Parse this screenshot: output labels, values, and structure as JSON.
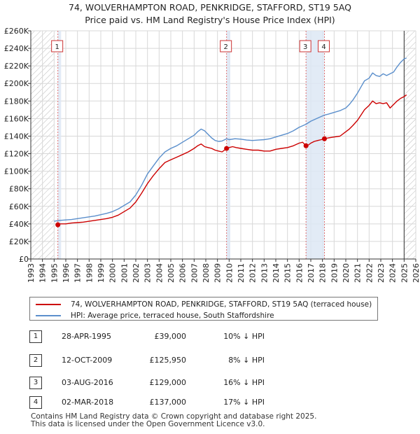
{
  "title": {
    "line1": "74, WOLVERHAMPTON ROAD, PENKRIDGE, STAFFORD, ST19 5AQ",
    "line2": "Price paid vs. HM Land Registry's House Price Index (HPI)"
  },
  "colors": {
    "property": "#cc0000",
    "hpi": "#5b8fcc",
    "shade": "#dde7f5",
    "marker_line": "#e07070"
  },
  "legend": {
    "property": "74, WOLVERHAMPTON ROAD, PENKRIDGE, STAFFORD, ST19 5AQ (terraced house)",
    "hpi": "HPI: Average price, terraced house, South Staffordshire"
  },
  "sales": [
    {
      "num": "1",
      "date": "28-APR-1995",
      "price": "£39,000",
      "hpi": "10% ↓ HPI"
    },
    {
      "num": "2",
      "date": "12-OCT-2009",
      "price": "£125,950",
      "hpi": "8% ↓ HPI"
    },
    {
      "num": "3",
      "date": "03-AUG-2016",
      "price": "£129,000",
      "hpi": "16% ↓ HPI"
    },
    {
      "num": "4",
      "date": "02-MAR-2018",
      "price": "£137,000",
      "hpi": "17% ↓ HPI"
    }
  ],
  "footer": {
    "line1": "Contains HM Land Registry data © Crown copyright and database right 2025.",
    "line2": "This data is licensed under the Open Government Licence v3.0."
  },
  "chart_data": {
    "type": "line",
    "title": "Price paid vs. HM Land Registry's House Price Index (HPI)",
    "xlabel": "",
    "ylabel": "",
    "xlim": [
      1993,
      2026
    ],
    "ylim": [
      0,
      260000
    ],
    "y_ticks": [
      0,
      20000,
      40000,
      60000,
      80000,
      100000,
      120000,
      140000,
      160000,
      180000,
      200000,
      220000,
      240000,
      260000
    ],
    "y_tick_labels": [
      "£0",
      "£20K",
      "£40K",
      "£60K",
      "£80K",
      "£100K",
      "£120K",
      "£140K",
      "£160K",
      "£180K",
      "£200K",
      "£220K",
      "£240K",
      "£260K"
    ],
    "x_ticks": [
      1993,
      1994,
      1995,
      1996,
      1997,
      1998,
      1999,
      2000,
      2001,
      2002,
      2003,
      2004,
      2005,
      2006,
      2007,
      2008,
      2009,
      2010,
      2011,
      2012,
      2013,
      2014,
      2015,
      2016,
      2017,
      2018,
      2019,
      2020,
      2021,
      2022,
      2023,
      2024,
      2025,
      2026
    ],
    "hatched_regions": [
      [
        1993,
        1995.0
      ],
      [
        2025.0,
        2026
      ]
    ],
    "shaded_regions": [
      [
        1995.32,
        1995.6
      ],
      [
        2009.78,
        2010.1
      ],
      [
        2016.59,
        2018.17
      ]
    ],
    "series": [
      {
        "name": "74, WOLVERHAMPTON ROAD, PENKRIDGE, STAFFORD, ST19 5AQ (terraced house)",
        "x": [
          1995.32,
          1995.5,
          1996,
          1996.5,
          1997,
          1997.5,
          1998,
          1998.5,
          1999,
          1999.5,
          2000,
          2000.5,
          2001,
          2001.5,
          2002,
          2002.5,
          2003,
          2003.5,
          2004,
          2004.5,
          2005,
          2005.5,
          2006,
          2006.5,
          2007,
          2007.3,
          2007.6,
          2007.9,
          2008.2,
          2008.5,
          2008.8,
          2009.1,
          2009.4,
          2009.78,
          2010,
          2010.3,
          2010.6,
          2011,
          2011.5,
          2012,
          2012.5,
          2013,
          2013.5,
          2014,
          2014.5,
          2015,
          2015.5,
          2016,
          2016.3,
          2016.59,
          2016.8,
          2017,
          2017.3,
          2017.6,
          2017.9,
          2018.17,
          2018.5,
          2019,
          2019.5,
          2020,
          2020.3,
          2020.6,
          2021,
          2021.3,
          2021.6,
          2022,
          2022.3,
          2022.6,
          2022.9,
          2023.2,
          2023.5,
          2023.8,
          2024.1,
          2024.4,
          2024.7,
          2025,
          2025.2
        ],
        "values": [
          39000,
          40000,
          40000,
          41000,
          41500,
          42000,
          43000,
          44000,
          45000,
          46000,
          47500,
          50000,
          54000,
          58000,
          65000,
          75000,
          86000,
          95000,
          103000,
          110000,
          113000,
          116000,
          119000,
          122000,
          126000,
          129000,
          131000,
          128000,
          127000,
          126000,
          124000,
          123000,
          122000,
          125950,
          127000,
          128000,
          127000,
          126000,
          125000,
          124000,
          124000,
          123000,
          123000,
          125000,
          126000,
          127000,
          129000,
          132000,
          133000,
          129000,
          130000,
          132000,
          134000,
          135000,
          136000,
          137000,
          138000,
          139000,
          140000,
          145000,
          148000,
          152000,
          158000,
          164000,
          170000,
          175000,
          180000,
          177000,
          178000,
          177000,
          178000,
          172000,
          176000,
          180000,
          183000,
          185000,
          187000
        ]
      },
      {
        "name": "HPI: Average price, terraced house, South Staffordshire",
        "x": [
          1995,
          1995.5,
          1996,
          1996.5,
          1997,
          1997.5,
          1998,
          1998.5,
          1999,
          1999.5,
          2000,
          2000.5,
          2001,
          2001.5,
          2002,
          2002.5,
          2003,
          2003.5,
          2004,
          2004.5,
          2005,
          2005.5,
          2006,
          2006.5,
          2007,
          2007.3,
          2007.6,
          2007.9,
          2008.2,
          2008.5,
          2008.8,
          2009.1,
          2009.4,
          2009.78,
          2010,
          2010.5,
          2011,
          2011.5,
          2012,
          2012.5,
          2013,
          2013.5,
          2014,
          2014.5,
          2015,
          2015.5,
          2016,
          2016.59,
          2017,
          2017.5,
          2018.17,
          2018.5,
          2019,
          2019.5,
          2020,
          2020.3,
          2020.6,
          2021,
          2021.3,
          2021.6,
          2022,
          2022.3,
          2022.6,
          2022.9,
          2023.2,
          2023.5,
          2023.8,
          2024.1,
          2024.4,
          2024.7,
          2025,
          2025.2
        ],
        "values": [
          43000,
          44000,
          44500,
          45000,
          46000,
          47000,
          48000,
          49000,
          50500,
          52000,
          54000,
          57000,
          61000,
          65000,
          73000,
          84000,
          97000,
          106000,
          115000,
          122000,
          126000,
          129000,
          133000,
          137000,
          141000,
          145000,
          148000,
          146000,
          142000,
          138000,
          135000,
          134000,
          134500,
          137000,
          136000,
          137000,
          136500,
          135500,
          135000,
          135500,
          136000,
          137000,
          139000,
          141000,
          143000,
          146000,
          150000,
          153500,
          157000,
          160000,
          164000,
          165000,
          167000,
          169000,
          172000,
          176000,
          181000,
          189000,
          196000,
          203000,
          206000,
          212000,
          209000,
          208000,
          211000,
          209000,
          211000,
          213000,
          219000,
          224000,
          228000,
          229000
        ]
      }
    ],
    "sale_points": [
      {
        "label": "1",
        "x": 1995.32,
        "y": 39000
      },
      {
        "label": "2",
        "x": 2009.78,
        "y": 125950
      },
      {
        "label": "3",
        "x": 2016.59,
        "y": 129000
      },
      {
        "label": "4",
        "x": 2018.17,
        "y": 137000
      }
    ]
  }
}
